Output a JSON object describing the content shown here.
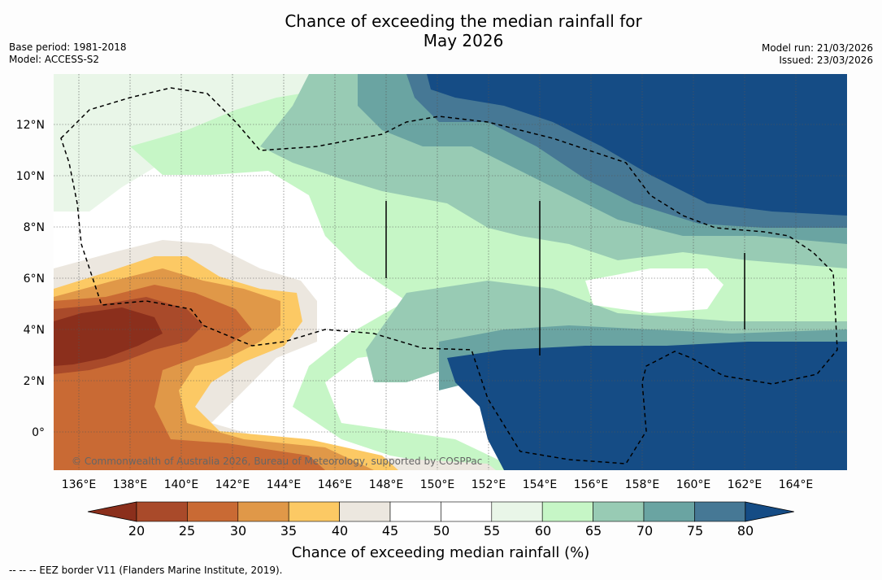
{
  "header": {
    "title_line1": "Chance of exceeding the median rainfall for",
    "title_line2": "May 2026",
    "base_period": "Base period: 1981-2018",
    "model": "Model: ACCESS-S2",
    "model_run": "Model run: 21/03/2026",
    "issued": "Issued: 23/03/2026"
  },
  "map": {
    "lon_ticks": [
      "136°E",
      "138°E",
      "140°E",
      "142°E",
      "144°E",
      "146°E",
      "148°E",
      "150°E",
      "152°E",
      "154°E",
      "156°E",
      "158°E",
      "160°E",
      "162°E",
      "164°E"
    ],
    "lat_ticks": [
      "12°N",
      "10°N",
      "8°N",
      "6°N",
      "4°N",
      "2°N",
      "0°"
    ],
    "copyright": "© Commonwealth of Australia 2026, Bureau of Meteorology, supported by COSPPac"
  },
  "colorbar": {
    "title": "Chance of exceeding median rainfall (%)",
    "ticks": [
      "20",
      "25",
      "30",
      "35",
      "40",
      "45",
      "50",
      "55",
      "60",
      "65",
      "70",
      "75",
      "80"
    ],
    "colors": [
      "#8b2f1c",
      "#a94a2a",
      "#c96a34",
      "#e09848",
      "#fcc964",
      "#ece7df",
      "#ffffff",
      "#ffffff",
      "#e9f6e8",
      "#c6f6c6",
      "#98cbb4",
      "#6aa4a2",
      "#467895",
      "#154c85"
    ]
  },
  "footnote": "-- -- -- EEZ border V11 (Flanders Marine Institute, 2019)."
}
